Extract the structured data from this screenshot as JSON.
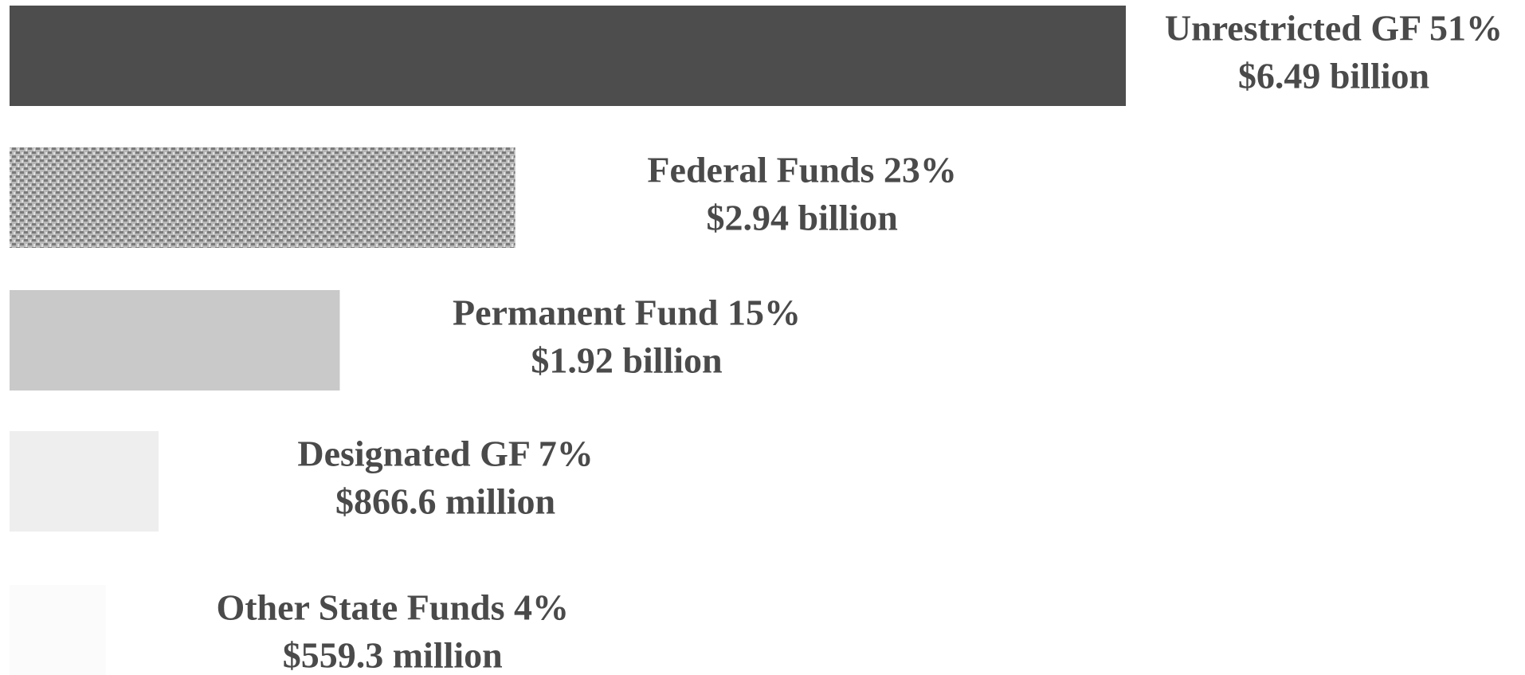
{
  "chart_data": {
    "type": "bar",
    "orientation": "horizontal",
    "categories": [
      "Unrestricted GF 51%",
      "Federal Funds 23%",
      "Permanent Fund 15%",
      "Designated GF 7%",
      "Other State Funds 4%"
    ],
    "values": [
      6490000000,
      2940000000,
      1920000000,
      866600000,
      559300000
    ],
    "value_labels": [
      "$6.49 billion",
      "$2.94 billion",
      "$1.92 billion",
      "$866.6 million",
      "$559.3 million"
    ],
    "colors": [
      "#4d4d4d",
      "#9c9c9c",
      "#c9c9c9",
      "#eeeeee",
      "#fbfbfb"
    ]
  }
}
